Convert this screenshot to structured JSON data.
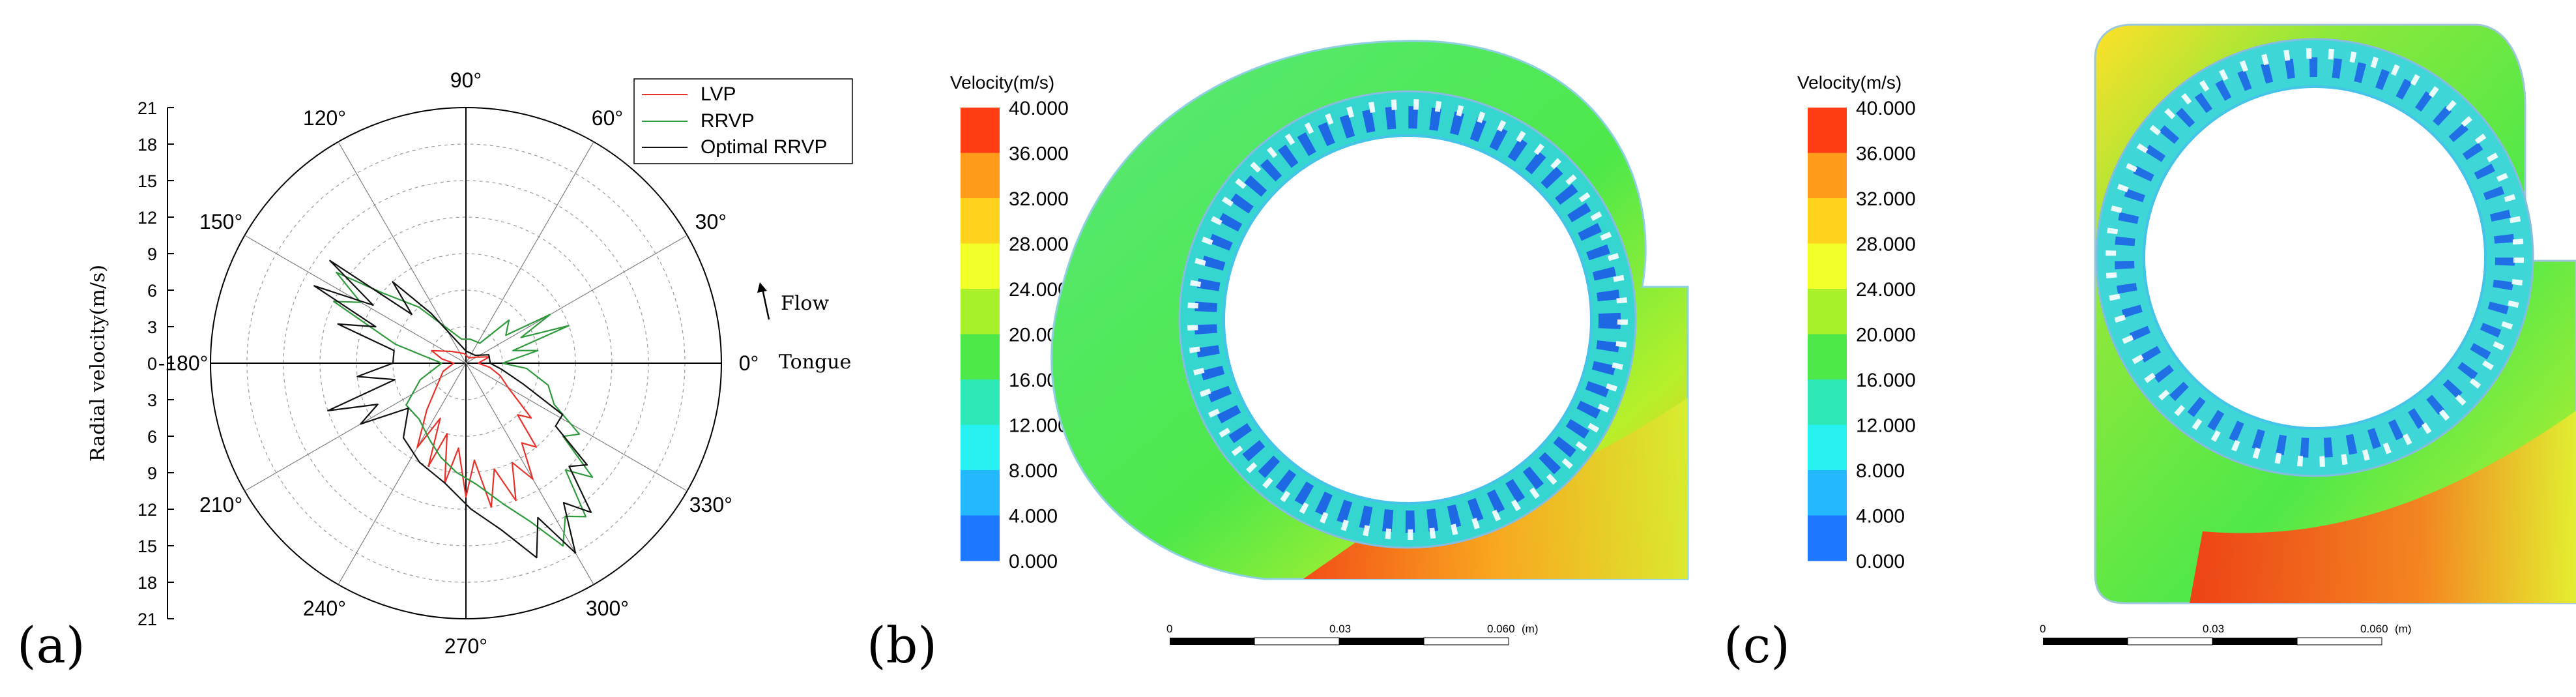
{
  "panels": {
    "a": "(a)",
    "b": "(b)",
    "c": "(c)"
  },
  "chart_data": [
    {
      "type": "line",
      "subtype": "polar",
      "ylabel": "Radial velocity(m/s)",
      "radial_ticks": [
        0,
        3,
        6,
        9,
        12,
        15,
        18,
        21
      ],
      "rlim": [
        0,
        21
      ],
      "angle_labels": [
        "0°",
        "30°",
        "60°",
        "90°",
        "120°",
        "150°",
        "180°",
        "210°",
        "240°",
        "270°",
        "300°",
        "330°"
      ],
      "angle_label_display": [
        "0°",
        "30°",
        "60°",
        "90°",
        "120°",
        "150°",
        "-180°",
        "210°",
        "240°",
        "270°",
        "300°",
        "330°"
      ],
      "annotations": [
        "Flow",
        "Tongue"
      ],
      "legend_position": "top-right",
      "grid": true,
      "series": [
        {
          "name": "LVP",
          "color": "#e8302a",
          "points": [
            [
              0,
              1.0
            ],
            [
              15,
              2.0
            ],
            [
              30,
              1.0
            ],
            [
              60,
              0.5
            ],
            [
              100,
              0.8
            ],
            [
              140,
              1.5
            ],
            [
              160,
              3.0
            ],
            [
              170,
              2.0
            ],
            [
              180,
              1.0
            ],
            [
              200,
              2.0
            ],
            [
              230,
              5.0
            ],
            [
              240,
              8.0
            ],
            [
              245,
              5.0
            ],
            [
              250,
              9.0
            ],
            [
              255,
              6.0
            ],
            [
              260,
              10.0
            ],
            [
              265,
              7.0
            ],
            [
              270,
              11.0
            ],
            [
              275,
              8.0
            ],
            [
              280,
              12.0
            ],
            [
              285,
              9.0
            ],
            [
              290,
              12.0
            ],
            [
              295,
              9.0
            ],
            [
              300,
              11.0
            ],
            [
              305,
              8.0
            ],
            [
              310,
              9.0
            ],
            [
              315,
              6.0
            ],
            [
              320,
              7.0
            ],
            [
              330,
              4.0
            ],
            [
              340,
              3.0
            ],
            [
              350,
              2.0
            ]
          ]
        },
        {
          "name": "RRVP",
          "color": "#2e9a3c",
          "points": [
            [
              0,
              3.0
            ],
            [
              10,
              6.0
            ],
            [
              15,
              4.0
            ],
            [
              20,
              9.0
            ],
            [
              25,
              5.0
            ],
            [
              30,
              8.0
            ],
            [
              35,
              4.0
            ],
            [
              45,
              5.0
            ],
            [
              55,
              2.0
            ],
            [
              80,
              2.0
            ],
            [
              100,
              2.0
            ],
            [
              130,
              6.0
            ],
            [
              140,
              9.0
            ],
            [
              145,
              13.0
            ],
            [
              150,
              10.0
            ],
            [
              155,
              12.0
            ],
            [
              165,
              6.0
            ],
            [
              180,
              2.0
            ],
            [
              200,
              4.0
            ],
            [
              215,
              6.0
            ],
            [
              230,
              6.0
            ],
            [
              245,
              7.0
            ],
            [
              255,
              8.0
            ],
            [
              265,
              9.0
            ],
            [
              275,
              10.0
            ],
            [
              285,
              12.0
            ],
            [
              292,
              14.0
            ],
            [
              298,
              17.0
            ],
            [
              303,
              15.0
            ],
            [
              308,
              16.0
            ],
            [
              313,
              12.0
            ],
            [
              318,
              14.0
            ],
            [
              323,
              10.0
            ],
            [
              328,
              11.0
            ],
            [
              335,
              8.0
            ],
            [
              345,
              7.0
            ],
            [
              355,
              5.0
            ]
          ]
        },
        {
          "name": "Optimal RRVP",
          "color": "#111111",
          "points": [
            [
              0,
              2.0
            ],
            [
              20,
              2.0
            ],
            [
              40,
              1.0
            ],
            [
              90,
              1.0
            ],
            [
              125,
              5.0
            ],
            [
              132,
              9.0
            ],
            [
              138,
              6.0
            ],
            [
              143,
              14.0
            ],
            [
              148,
              9.0
            ],
            [
              153,
              14.0
            ],
            [
              158,
              8.0
            ],
            [
              163,
              11.0
            ],
            [
              170,
              6.0
            ],
            [
              180,
              6.0
            ],
            [
              187,
              9.0
            ],
            [
              193,
              6.0
            ],
            [
              199,
              12.0
            ],
            [
              205,
              8.0
            ],
            [
              210,
              10.0
            ],
            [
              218,
              6.0
            ],
            [
              230,
              8.0
            ],
            [
              245,
              9.0
            ],
            [
              260,
              10.0
            ],
            [
              272,
              12.0
            ],
            [
              282,
              14.0
            ],
            [
              290,
              17.0
            ],
            [
              295,
              14.0
            ],
            [
              300,
              18.0
            ],
            [
              305,
              14.0
            ],
            [
              310,
              16.0
            ],
            [
              315,
              12.0
            ],
            [
              320,
              13.0
            ],
            [
              325,
              9.0
            ],
            [
              332,
              9.0
            ],
            [
              340,
              5.0
            ],
            [
              350,
              3.0
            ]
          ]
        }
      ]
    },
    {
      "type": "heatmap",
      "subtype": "cfd-streamline-contour",
      "legend_title": "Velocity(m/s)",
      "colorbar_ticks": [
        "40.000",
        "36.000",
        "32.000",
        "28.000",
        "24.000",
        "20.000",
        "16.000",
        "12.000",
        "8.000",
        "4.000",
        "0.000"
      ],
      "colorbar_colors": [
        "#ff3c14",
        "#ff9a1a",
        "#ffd21e",
        "#f2ff28",
        "#a8f02a",
        "#4ee84a",
        "#2ee8b8",
        "#27f0f0",
        "#24b8ff",
        "#1e78ff"
      ],
      "scale_labels": [
        "0",
        "0.03",
        "0.060",
        "(m)"
      ]
    },
    {
      "type": "heatmap",
      "subtype": "cfd-streamline-contour",
      "legend_title": "Velocity(m/s)",
      "colorbar_ticks": [
        "40.000",
        "36.000",
        "32.000",
        "28.000",
        "24.000",
        "20.000",
        "16.000",
        "12.000",
        "8.000",
        "4.000",
        "0.000"
      ],
      "colorbar_colors": [
        "#ff3c14",
        "#ff9a1a",
        "#ffd21e",
        "#f2ff28",
        "#a8f02a",
        "#4ee84a",
        "#2ee8b8",
        "#27f0f0",
        "#24b8ff",
        "#1e78ff"
      ],
      "scale_labels": [
        "0",
        "0.03",
        "0.060",
        "(m)"
      ]
    }
  ]
}
